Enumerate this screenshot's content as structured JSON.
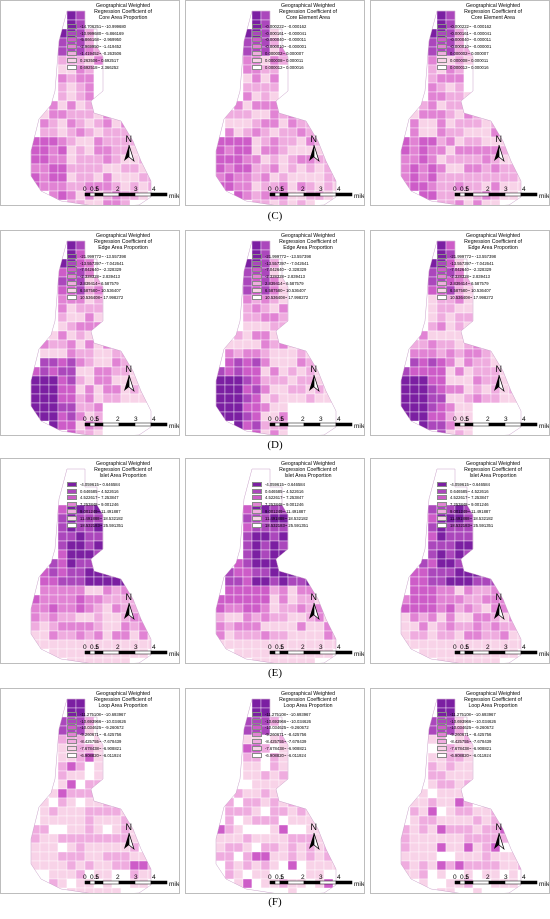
{
  "rows": [
    {
      "label": "(C)",
      "panels": [
        {
          "title": [
            "Geographical Weighted",
            "Regression Coefficient of",
            "Core Area Proportion"
          ],
          "legend": [
            {
              "label": "-14.706251~ -10.999680",
              "color": "#7b1fa2"
            },
            {
              "label": "-10.999680~ -5.866169",
              "color": "#ab47bc"
            },
            {
              "label": "-5.866168~ -2.969950",
              "color": "#cd5cc8"
            },
            {
              "label": "-2.969950~ -1.419452",
              "color": "#e183d4"
            },
            {
              "label": "-1.419452~ -0.263506",
              "color": "#efacdf"
            },
            {
              "label": "0.263506~ 0.692517",
              "color": "#f8d3e8"
            },
            {
              "label": "0.692518~ 2.366252",
              "color": "#ffffff"
            }
          ]
        },
        {
          "title": [
            "Geographical Weighted",
            "Regression Coefficient of",
            "Core Element Area"
          ],
          "legend": [
            {
              "label": "-0.000222~ -0.000162",
              "color": "#7b1fa2"
            },
            {
              "label": "-0.000161~ -0.000041",
              "color": "#ab47bc"
            },
            {
              "label": "-0.000040~ -0.000011",
              "color": "#cd5cc8"
            },
            {
              "label": "-0.000010~ -0.000001",
              "color": "#e183d4"
            },
            {
              "label": "0.000002~ 0.000007",
              "color": "#efacdf"
            },
            {
              "label": "0.000008~ 0.000011",
              "color": "#f8d3e8"
            },
            {
              "label": "0.000012~ 0.000016",
              "color": "#ffffff"
            }
          ]
        },
        {
          "title": [
            "Geographical Weighted",
            "Regression Coefficient of",
            "Core Element Area"
          ],
          "legend": [
            {
              "label": "-0.000222~ -0.000162",
              "color": "#7b1fa2"
            },
            {
              "label": "-0.000161~ -0.000041",
              "color": "#ab47bc"
            },
            {
              "label": "-0.000040~ -0.000011",
              "color": "#cd5cc8"
            },
            {
              "label": "-0.000010~ -0.000001",
              "color": "#e183d4"
            },
            {
              "label": "0.000002~ 0.000007",
              "color": "#efacdf"
            },
            {
              "label": "0.000008~ 0.000011",
              "color": "#f8d3e8"
            },
            {
              "label": "0.000012~ 0.000016",
              "color": "#ffffff"
            }
          ]
        }
      ]
    },
    {
      "label": "(D)",
      "panels": [
        {
          "title": [
            "Geographical Weighted",
            "Regression Coefficient of",
            "Edge Area Proportion"
          ],
          "legend": [
            {
              "label": "-21.999772~ -13.557398",
              "color": "#7b1fa2"
            },
            {
              "label": "-13.557397~ -7.042641",
              "color": "#ab47bc"
            },
            {
              "label": "-7.042640~ -2.328329",
              "color": "#cd5cc8"
            },
            {
              "label": "-2.328328~ 2.839413",
              "color": "#e183d4"
            },
            {
              "label": "2.839414~ 6.587579",
              "color": "#efacdf"
            },
            {
              "label": "6.587580~ 10.536407",
              "color": "#f8d3e8"
            },
            {
              "label": "10.536408~ 17.998272",
              "color": "#ffffff"
            }
          ]
        },
        {
          "title": [
            "Geographical Weighted",
            "Regression Coefficient of",
            "Edge Area Proportion"
          ],
          "legend": [
            {
              "label": "-21.999772~ -13.557398",
              "color": "#7b1fa2"
            },
            {
              "label": "-13.557397~ -7.042641",
              "color": "#ab47bc"
            },
            {
              "label": "-7.042640~ -2.328329",
              "color": "#cd5cc8"
            },
            {
              "label": "-2.328328~ 2.839413",
              "color": "#e183d4"
            },
            {
              "label": "2.839414~ 6.587579",
              "color": "#efacdf"
            },
            {
              "label": "6.587580~ 10.536407",
              "color": "#f8d3e8"
            },
            {
              "label": "10.536408~ 17.998272",
              "color": "#ffffff"
            }
          ]
        },
        {
          "title": [
            "Geographical Weighted",
            "Regression Coefficient of",
            "Edge Area Proportion"
          ],
          "legend": [
            {
              "label": "-21.999772~ -13.557398",
              "color": "#7b1fa2"
            },
            {
              "label": "-13.557397~ -7.042641",
              "color": "#ab47bc"
            },
            {
              "label": "-7.042640~ -2.328329",
              "color": "#cd5cc8"
            },
            {
              "label": "-2.328328~ 2.839413",
              "color": "#e183d4"
            },
            {
              "label": "2.839414~ 6.587579",
              "color": "#efacdf"
            },
            {
              "label": "6.587580~ 10.536407",
              "color": "#f8d3e8"
            },
            {
              "label": "10.536408~ 17.998272",
              "color": "#ffffff"
            }
          ]
        }
      ]
    },
    {
      "label": "(E)",
      "panels": [
        {
          "title": [
            "Geographical Weighted",
            "Regression Coefficient of",
            "Islet Area Proportion"
          ],
          "legend": [
            {
              "label": "-4.059615~ 0.646584",
              "color": "#7b1fa2"
            },
            {
              "label": "0.646585~ 4.522616",
              "color": "#ab47bc"
            },
            {
              "label": "4.522617~ 7.253847",
              "color": "#cd5cc8"
            },
            {
              "label": "7.253848~ 9.001246",
              "color": "#e183d4"
            },
            {
              "label": "9.001249~ 11.491887",
              "color": "#efacdf"
            },
            {
              "label": "11.491888~ 18.532182",
              "color": "#f8d3e8"
            },
            {
              "label": "18.532183~ 25.591351",
              "color": "#ffffff"
            }
          ]
        },
        {
          "title": [
            "Geographical Weighted",
            "Regression Coefficient of",
            "Islet Area Proportion"
          ],
          "legend": [
            {
              "label": "-4.059615~ 0.646584",
              "color": "#7b1fa2"
            },
            {
              "label": "0.646585~ 4.522616",
              "color": "#ab47bc"
            },
            {
              "label": "4.522617~ 7.253847",
              "color": "#cd5cc8"
            },
            {
              "label": "7.253848~ 9.001246",
              "color": "#e183d4"
            },
            {
              "label": "9.001249~ 11.491887",
              "color": "#efacdf"
            },
            {
              "label": "11.491888~ 18.532182",
              "color": "#f8d3e8"
            },
            {
              "label": "18.532183~ 25.591351",
              "color": "#ffffff"
            }
          ]
        },
        {
          "title": [
            "Geographical Weighted",
            "Regression Coefficient of",
            "Islet Area Proportion"
          ],
          "legend": [
            {
              "label": "-4.059615~ 0.646584",
              "color": "#7b1fa2"
            },
            {
              "label": "0.646585~ 4.522616",
              "color": "#ab47bc"
            },
            {
              "label": "4.522617~ 7.253847",
              "color": "#cd5cc8"
            },
            {
              "label": "7.253848~ 9.001246",
              "color": "#e183d4"
            },
            {
              "label": "9.001249~ 11.491887",
              "color": "#efacdf"
            },
            {
              "label": "11.491888~ 18.532182",
              "color": "#f8d3e8"
            },
            {
              "label": "18.532183~ 25.591351",
              "color": "#ffffff"
            }
          ]
        }
      ]
    },
    {
      "label": "(F)",
      "panels": [
        {
          "title": [
            "Geographical Weighted",
            "Regression Coefficient of",
            "Loop Area Proportion"
          ],
          "legend": [
            {
              "label": "-11.275108~ -10.693967",
              "color": "#7b1fa2"
            },
            {
              "label": "-10.693966~ -10.034626",
              "color": "#ab47bc"
            },
            {
              "label": "-10.034625~ -9.260672",
              "color": "#cd5cc8"
            },
            {
              "label": "-9.260671~ -8.425756",
              "color": "#e183d4"
            },
            {
              "label": "-8.425755~ -7.678439",
              "color": "#efacdf"
            },
            {
              "label": "-7.678438~ -6.908821",
              "color": "#f8d3e8"
            },
            {
              "label": "-6.908820~ -6.011924",
              "color": "#ffffff"
            }
          ]
        },
        {
          "title": [
            "Geographical Weighted",
            "Regression Coefficient of",
            "Loop Area Proportion"
          ],
          "legend": [
            {
              "label": "-11.275108~ -10.693967",
              "color": "#7b1fa2"
            },
            {
              "label": "-10.693966~ -10.034626",
              "color": "#ab47bc"
            },
            {
              "label": "-10.034625~ -9.260672",
              "color": "#cd5cc8"
            },
            {
              "label": "-9.260671~ -8.425756",
              "color": "#e183d4"
            },
            {
              "label": "-8.425755~ -7.678439",
              "color": "#efacdf"
            },
            {
              "label": "-7.678438~ -6.908821",
              "color": "#f8d3e8"
            },
            {
              "label": "-6.908820~ -6.011924",
              "color": "#ffffff"
            }
          ]
        },
        {
          "title": [
            "Geographical Weighted",
            "Regression Coefficient of",
            "Loop Area Proportion"
          ],
          "legend": [
            {
              "label": "-11.275108~ -10.693967",
              "color": "#7b1fa2"
            },
            {
              "label": "-10.693966~ -10.034626",
              "color": "#ab47bc"
            },
            {
              "label": "-10.034625~ -9.260672",
              "color": "#cd5cc8"
            },
            {
              "label": "-9.260671~ -8.425756",
              "color": "#e183d4"
            },
            {
              "label": "-8.425755~ -7.678439",
              "color": "#efacdf"
            },
            {
              "label": "-7.678438~ -6.908821",
              "color": "#f8d3e8"
            },
            {
              "label": "-6.908820~ -6.011924",
              "color": "#ffffff"
            }
          ]
        }
      ]
    }
  ],
  "north_arrow_label": "N",
  "scale_bar": {
    "ticks": [
      "0",
      "0.5",
      "1",
      "2",
      "3",
      "4"
    ],
    "unit": "mile"
  },
  "colors": {
    "class_colors": [
      "#7b1fa2",
      "#ab47bc",
      "#cd5cc8",
      "#e183d4",
      "#efacdf",
      "#f8d3e8",
      "#ffffff"
    ],
    "grid_line": "#ffffff",
    "panel_border": "#bdbdbd"
  }
}
